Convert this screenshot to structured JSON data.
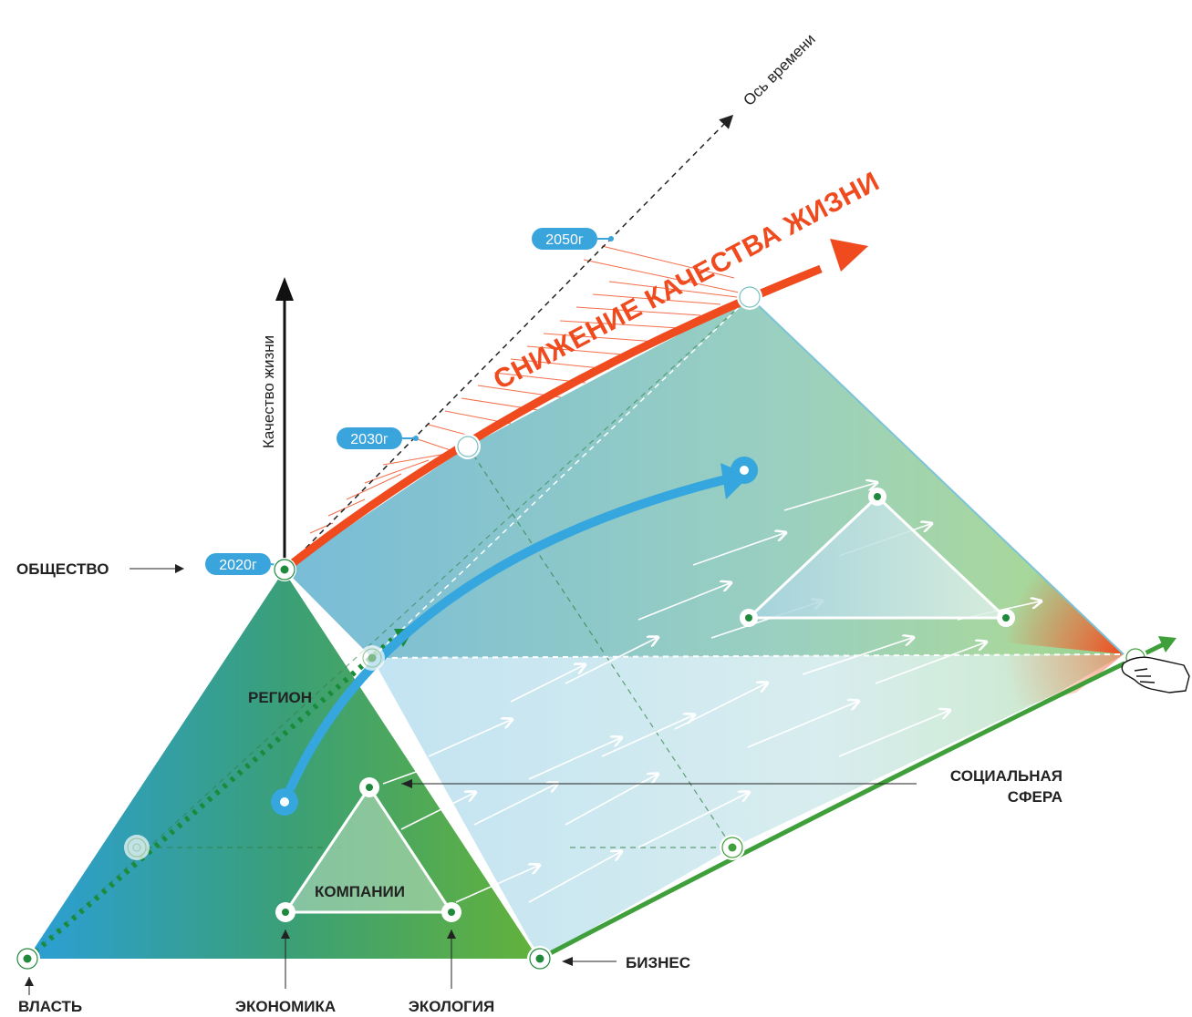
{
  "axes": {
    "time_axis_label": "Ось времени",
    "quality_axis_label": "Качество жизни"
  },
  "years": {
    "y2020": "2020г",
    "y2030": "2030г",
    "y2050": "2050г"
  },
  "headline": "СНИЖЕНИЕ КАЧЕСТВА ЖИЗНИ",
  "labels": {
    "society": "ОБЩЕСТВО",
    "region": "РЕГИОН",
    "companies": "КОМПАНИИ",
    "social_line1": "СОЦИАЛЬНАЯ",
    "social_line2": "СФЕРА",
    "business": "БИЗНЕС",
    "power": "ВЛАСТЬ",
    "economy": "ЭКОНОМИКА",
    "ecology": "ЭКОЛОГИЯ"
  },
  "colors": {
    "red": "#f04a1f",
    "blue": "#35a6de",
    "green": "#3f9f3a",
    "dark_green": "#1f8a3c",
    "year_badge": "#3aa4dc"
  }
}
